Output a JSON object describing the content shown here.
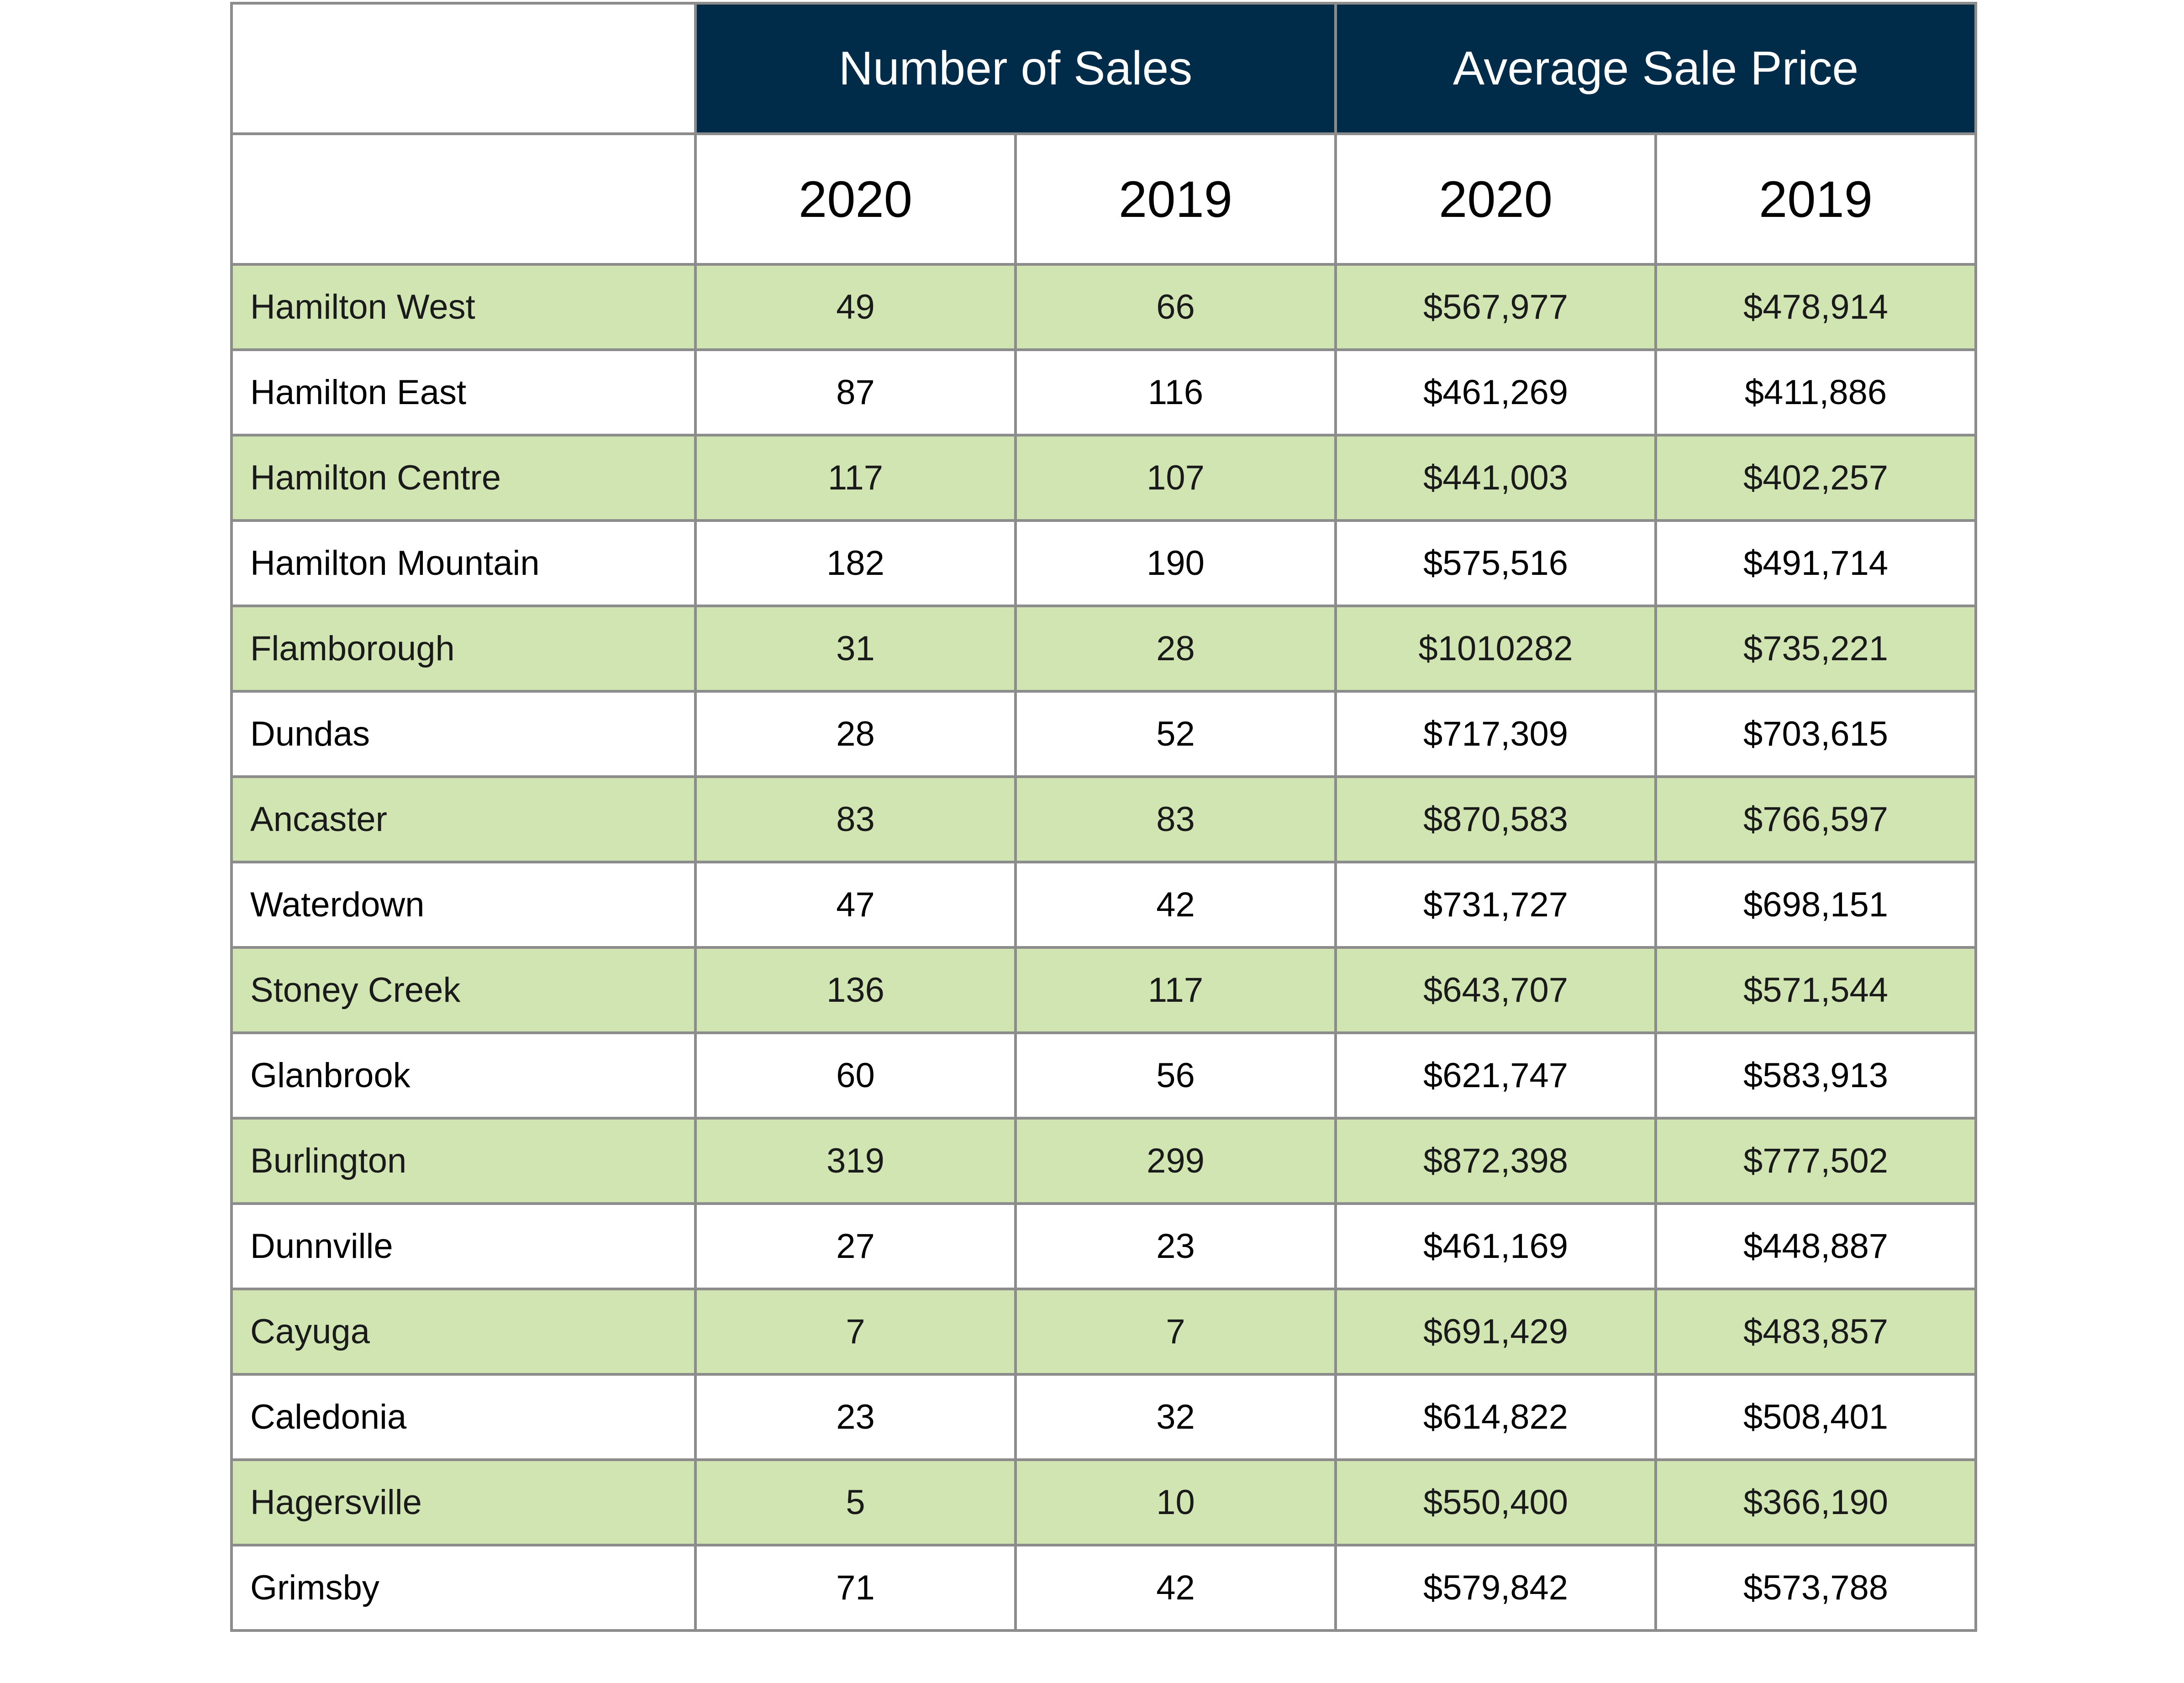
{
  "table": {
    "group_headers": {
      "sales": "Number of Sales",
      "price": "Average Sale Price"
    },
    "year_headers": [
      "2020",
      "2019",
      "2020",
      "2019"
    ],
    "rows": [
      {
        "area": "Hamilton West",
        "sales_2020": "49",
        "sales_2019": "66",
        "price_2020": "$567,977",
        "price_2019": "$478,914"
      },
      {
        "area": "Hamilton East",
        "sales_2020": "87",
        "sales_2019": "116",
        "price_2020": "$461,269",
        "price_2019": "$411,886"
      },
      {
        "area": "Hamilton Centre",
        "sales_2020": "117",
        "sales_2019": "107",
        "price_2020": "$441,003",
        "price_2019": "$402,257"
      },
      {
        "area": "Hamilton Mountain",
        "sales_2020": "182",
        "sales_2019": "190",
        "price_2020": "$575,516",
        "price_2019": "$491,714"
      },
      {
        "area": "Flamborough",
        "sales_2020": "31",
        "sales_2019": "28",
        "price_2020": "$1010282",
        "price_2019": "$735,221"
      },
      {
        "area": "Dundas",
        "sales_2020": "28",
        "sales_2019": "52",
        "price_2020": "$717,309",
        "price_2019": "$703,615"
      },
      {
        "area": "Ancaster",
        "sales_2020": "83",
        "sales_2019": "83",
        "price_2020": "$870,583",
        "price_2019": "$766,597"
      },
      {
        "area": "Waterdown",
        "sales_2020": "47",
        "sales_2019": "42",
        "price_2020": "$731,727",
        "price_2019": "$698,151"
      },
      {
        "area": "Stoney Creek",
        "sales_2020": "136",
        "sales_2019": "117",
        "price_2020": "$643,707",
        "price_2019": "$571,544"
      },
      {
        "area": "Glanbrook",
        "sales_2020": "60",
        "sales_2019": "56",
        "price_2020": "$621,747",
        "price_2019": "$583,913"
      },
      {
        "area": "Burlington",
        "sales_2020": "319",
        "sales_2019": "299",
        "price_2020": "$872,398",
        "price_2019": "$777,502"
      },
      {
        "area": "Dunnville",
        "sales_2020": "27",
        "sales_2019": "23",
        "price_2020": "$461,169",
        "price_2019": "$448,887"
      },
      {
        "area": "Cayuga",
        "sales_2020": "7",
        "sales_2019": "7",
        "price_2020": "$691,429",
        "price_2019": "$483,857"
      },
      {
        "area": "Caledonia",
        "sales_2020": "23",
        "sales_2019": "32",
        "price_2020": "$614,822",
        "price_2019": "$508,401"
      },
      {
        "area": "Hagersville",
        "sales_2020": "5",
        "sales_2019": "10",
        "price_2020": "$550,400",
        "price_2019": "$366,190"
      },
      {
        "area": "Grimsby",
        "sales_2020": "71",
        "sales_2019": "42",
        "price_2020": "$579,842",
        "price_2019": "$573,788"
      }
    ],
    "colors": {
      "header_navy": "#002b49",
      "row_green": "#d0e5b2",
      "row_white": "#ffffff",
      "grid": "#8c8c8c"
    }
  }
}
